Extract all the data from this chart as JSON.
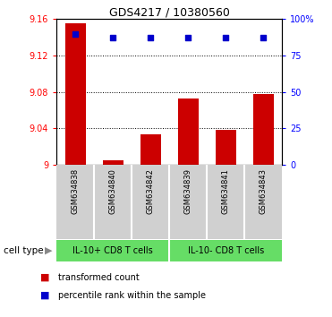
{
  "title": "GDS4217 / 10380560",
  "samples": [
    "GSM634838",
    "GSM634840",
    "GSM634842",
    "GSM634839",
    "GSM634841",
    "GSM634843"
  ],
  "bar_values": [
    9.155,
    9.005,
    9.033,
    9.073,
    9.038,
    9.078
  ],
  "percentile_values": [
    90,
    87,
    87,
    87,
    87,
    87
  ],
  "ylim_left": [
    9.0,
    9.16
  ],
  "ylim_right": [
    0,
    100
  ],
  "yticks_left": [
    9.0,
    9.04,
    9.08,
    9.12,
    9.16
  ],
  "yticks_right": [
    0,
    25,
    50,
    75,
    100
  ],
  "ytick_labels_left": [
    "9",
    "9.04",
    "9.08",
    "9.12",
    "9.16"
  ],
  "ytick_labels_right": [
    "0",
    "25",
    "50",
    "75",
    "100%"
  ],
  "bar_color": "#cc0000",
  "dot_color": "#0000cc",
  "group1_label": "IL-10+ CD8 T cells",
  "group2_label": "IL-10- CD8 T cells",
  "group1_indices": [
    0,
    1,
    2
  ],
  "group2_indices": [
    3,
    4,
    5
  ],
  "group_color": "#66dd66",
  "sample_bg_color": "#d0d0d0",
  "cell_type_label": "cell type",
  "legend_bar_label": "transformed count",
  "legend_dot_label": "percentile rank within the sample",
  "bar_base": 9.0,
  "figwidth": 3.71,
  "figheight": 3.54,
  "dpi": 100
}
